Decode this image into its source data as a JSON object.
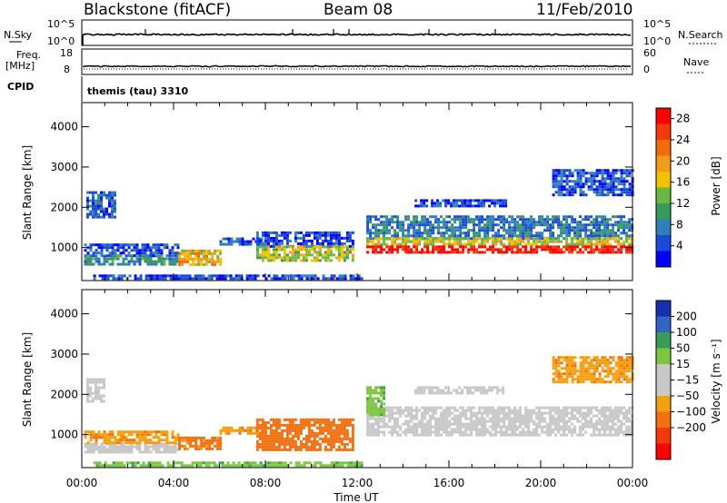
{
  "header": {
    "station": "Blackstone (fitACF)",
    "beam": "Beam 08",
    "date": "11/Feb/2010"
  },
  "info_panels": {
    "nsky_label": "N.Sky",
    "nsky_ticks": [
      "10^5",
      "10^0"
    ],
    "nsearch_label": "N.Search",
    "nsearch_ticks": [
      "10^5",
      "10^0"
    ],
    "freq_label": "Freq.",
    "freq_unit": "[MHz]",
    "freq_ticks": [
      "18",
      "8"
    ],
    "nave_label": "Nave",
    "nave_ticks": [
      "60",
      "0"
    ],
    "cpid_label": "CPID",
    "cpid_text": "themis (tau) 3310"
  },
  "colors": {
    "power_scale": [
      "#0000ff",
      "#1a4bd6",
      "#2f7fb8",
      "#3a9a5a",
      "#69b845",
      "#f2c200",
      "#f29a1a",
      "#f26a0a",
      "#f23a0a",
      "#ff0000"
    ],
    "velocity_scale": [
      "#1a2fb0",
      "#2f66c0",
      "#3a9a5a",
      "#7cc640",
      "#c8c8c8",
      "#c8c8c8",
      "#f2a010",
      "#f27010",
      "#f23a0a",
      "#ff0000"
    ]
  },
  "chart_data": [
    {
      "type": "heatmap",
      "name": "power",
      "ylabel": "Slant Range [km]",
      "xlabel": "Time UT",
      "x_ticks": [
        "00:00",
        "04:00",
        "08:00",
        "12:00",
        "16:00",
        "20:00",
        "00:00"
      ],
      "y_ticks": [
        "1000",
        "2000",
        "3000",
        "4000"
      ],
      "xlim_hours": [
        0,
        24
      ],
      "ylim_km": [
        180,
        4600
      ],
      "colorbar_label": "Power [dB]",
      "colorbar_ticks": [
        "4",
        "8",
        "12",
        "16",
        "20",
        "24",
        "28"
      ],
      "colorbar_range": [
        0,
        30
      ],
      "regions": [
        {
          "t0": 0.2,
          "t1": 1.4,
          "r0": 1750,
          "r1": 2400,
          "value": 6
        },
        {
          "t0": 0.1,
          "t1": 4.2,
          "r0": 820,
          "r1": 1100,
          "value": 5
        },
        {
          "t0": 0.1,
          "t1": 4.2,
          "r0": 580,
          "r1": 820,
          "value": 9
        },
        {
          "t0": 4.2,
          "t1": 6.0,
          "r0": 600,
          "r1": 950,
          "value": 18
        },
        {
          "t0": 6.0,
          "t1": 7.8,
          "r0": 1050,
          "r1": 1250,
          "value": 5
        },
        {
          "t0": 7.6,
          "t1": 11.8,
          "r0": 1050,
          "r1": 1400,
          "value": 4
        },
        {
          "t0": 7.6,
          "t1": 11.8,
          "r0": 650,
          "r1": 1050,
          "value": 15
        },
        {
          "t0": 12.4,
          "t1": 24.0,
          "r0": 1250,
          "r1": 1800,
          "value": 7
        },
        {
          "t0": 12.4,
          "t1": 24.0,
          "r0": 1050,
          "r1": 1250,
          "value": 16
        },
        {
          "t0": 12.4,
          "t1": 24.0,
          "r0": 880,
          "r1": 1050,
          "value": 28
        },
        {
          "t0": 14.5,
          "t1": 18.5,
          "r0": 2000,
          "r1": 2200,
          "value": 4
        },
        {
          "t0": 20.5,
          "t1": 24.0,
          "r0": 2300,
          "r1": 2950,
          "value": 5
        },
        {
          "t0": 0.5,
          "t1": 12.2,
          "r0": 200,
          "r1": 330,
          "value": 4
        }
      ]
    },
    {
      "type": "heatmap",
      "name": "velocity",
      "ylabel": "Slant Range [km]",
      "xlabel": "Time UT",
      "x_ticks": [
        "00:00",
        "04:00",
        "08:00",
        "12:00",
        "16:00",
        "20:00",
        "00:00"
      ],
      "y_ticks": [
        "1000",
        "2000",
        "3000",
        "4000"
      ],
      "xlim_hours": [
        0,
        24
      ],
      "ylim_km": [
        180,
        4600
      ],
      "colorbar_label": "Velocity [m s⁻¹]",
      "colorbar_ticks": [
        "200",
        "100",
        "50",
        "15",
        "−15",
        "−50",
        "−100",
        "−200"
      ],
      "regions": [
        {
          "t0": 0.2,
          "t1": 1.0,
          "r0": 1850,
          "r1": 2400,
          "value": 0
        },
        {
          "t0": 0.1,
          "t1": 4.2,
          "r0": 550,
          "r1": 800,
          "value": 0
        },
        {
          "t0": 0.1,
          "t1": 4.2,
          "r0": 800,
          "r1": 1100,
          "value": -40
        },
        {
          "t0": 4.2,
          "t1": 6.0,
          "r0": 620,
          "r1": 950,
          "value": -60
        },
        {
          "t0": 6.0,
          "t1": 7.8,
          "r0": 1050,
          "r1": 1200,
          "value": -40
        },
        {
          "t0": 7.6,
          "t1": 11.8,
          "r0": 600,
          "r1": 1400,
          "value": -70
        },
        {
          "t0": 12.4,
          "t1": 24.0,
          "r0": 1000,
          "r1": 1700,
          "value": 0
        },
        {
          "t0": 12.4,
          "t1": 13.2,
          "r0": 1500,
          "r1": 2200,
          "value": 40
        },
        {
          "t0": 14.5,
          "t1": 18.5,
          "r0": 2000,
          "r1": 2200,
          "value": 0
        },
        {
          "t0": 20.5,
          "t1": 24.0,
          "r0": 2300,
          "r1": 2950,
          "value": -40
        },
        {
          "t0": 0.5,
          "t1": 12.2,
          "r0": 200,
          "r1": 330,
          "value": 40
        }
      ]
    }
  ]
}
